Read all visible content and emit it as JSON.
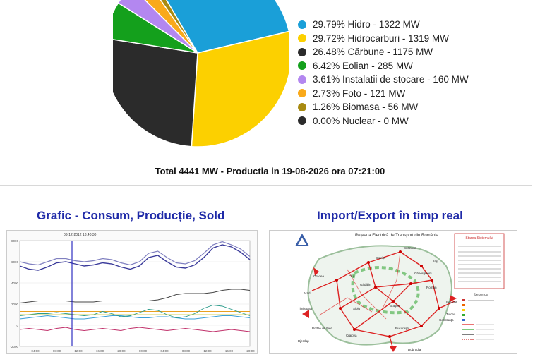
{
  "chart_data": {
    "type": "pie",
    "slices": [
      {
        "label": "29.79% Hidro - 1322 MW",
        "name": "Hidro",
        "percent": 29.79,
        "value": 1322,
        "color": "#1a9fd8"
      },
      {
        "label": "29.72% Hidrocarburi - 1319 MW",
        "name": "Hidrocarburi",
        "percent": 29.72,
        "value": 1319,
        "color": "#fcd000"
      },
      {
        "label": "26.48% Cărbune - 1175 MW",
        "name": "Cărbune",
        "percent": 26.48,
        "value": 1175,
        "color": "#2b2b2b"
      },
      {
        "label": "6.42% Eolian - 285 MW",
        "name": "Eolian",
        "percent": 6.42,
        "value": 285,
        "color": "#14a01c"
      },
      {
        "label": "3.61% Instalatii de stocare - 160 MW",
        "name": "Instalatii de stocare",
        "percent": 3.61,
        "value": 160,
        "color": "#b387f0"
      },
      {
        "label": "2.73% Foto - 121 MW",
        "name": "Foto",
        "percent": 2.73,
        "value": 121,
        "color": "#f9a91a"
      },
      {
        "label": "1.26% Biomasa - 56 MW",
        "name": "Biomasa",
        "percent": 1.26,
        "value": 56,
        "color": "#a88a10"
      },
      {
        "label": "0.00% Nuclear - 0 MW",
        "name": "Nuclear",
        "percent": 0.0,
        "value": 0,
        "color": "#2b2b2b"
      }
    ]
  },
  "total_text": "Total 4441 MW - Productia in 19-08-2026 ora 07:21:00",
  "sections": {
    "graph_title": "Grafic - Consum, Producție, Sold",
    "map_title": "Import/Export în timp real"
  },
  "graph_thumb": {
    "timestamp": "03-12-2012 18:40:30",
    "y_ticks": [
      "8000",
      "6000",
      "4000",
      "2000",
      "0",
      "-2000"
    ],
    "x_ticks": [
      "04:00",
      "08:00",
      "12:00",
      "16:00",
      "20:00",
      "00:00",
      "04:00",
      "08:00",
      "12:00",
      "16:00",
      "20:00"
    ],
    "consumption": [
      5.6,
      5.3,
      5.2,
      5.5,
      5.9,
      6.0,
      5.8,
      5.6,
      5.7,
      5.9,
      5.8,
      5.5,
      5.3,
      5.6,
      6.4,
      6.6,
      6.0,
      5.5,
      5.4,
      5.7,
      6.4,
      7.3,
      7.6,
      7.4,
      6.9,
      6.2
    ],
    "production": [
      6.0,
      5.8,
      5.7,
      6.0,
      6.3,
      6.3,
      6.1,
      6.0,
      6.1,
      6.3,
      6.2,
      5.9,
      5.7,
      6.0,
      6.8,
      7.0,
      6.4,
      5.9,
      5.8,
      6.1,
      6.8,
      7.6,
      7.9,
      7.6,
      7.2,
      6.5
    ],
    "coal": [
      2.1,
      2.2,
      2.3,
      2.3,
      2.3,
      2.3,
      2.2,
      2.2,
      2.2,
      2.3,
      2.3,
      2.3,
      2.3,
      2.3,
      2.3,
      2.4,
      2.6,
      2.9,
      3.0,
      3.0,
      3.0,
      3.1,
      3.3,
      3.4,
      3.4,
      3.3
    ],
    "hydro": [
      0.9,
      1.0,
      1.1,
      1.1,
      1.2,
      1.1,
      1.0,
      0.9,
      1.0,
      1.3,
      1.1,
      0.8,
      0.9,
      1.2,
      1.5,
      1.4,
      1.0,
      0.7,
      0.8,
      1.1,
      1.6,
      1.9,
      1.8,
      1.5,
      1.2,
      0.9
    ],
    "wind": [
      0.6,
      0.7,
      0.8,
      0.9,
      0.8,
      0.7,
      0.6,
      0.6,
      0.7,
      0.8,
      0.9,
      0.9,
      0.8,
      0.7,
      0.7,
      0.8,
      0.8,
      0.7,
      0.6,
      0.6,
      0.7,
      0.8,
      0.9,
      0.9,
      0.8,
      0.7
    ],
    "gas": [
      1.3,
      1.3,
      1.3,
      1.3,
      1.3,
      1.3,
      1.3,
      1.3,
      1.3,
      1.3,
      1.3,
      1.3,
      1.3,
      1.3,
      1.3,
      1.3,
      1.3,
      1.3,
      1.3,
      1.3,
      1.3,
      1.3,
      1.3,
      1.3,
      1.3,
      1.3
    ],
    "sold": [
      -0.4,
      -0.3,
      -0.4,
      -0.5,
      -0.3,
      -0.2,
      -0.4,
      -0.5,
      -0.4,
      -0.3,
      -0.4,
      -0.5,
      -0.3,
      -0.2,
      -0.3,
      -0.4,
      -0.5,
      -0.4,
      -0.3,
      -0.4,
      -0.5,
      -0.6,
      -0.5,
      -0.4,
      -0.5,
      -0.6
    ]
  },
  "map_thumb": {
    "title": "Reţeaua Electrică de Transport din România",
    "box_title": "Starea Sistemului",
    "cities": [
      "Suceava",
      "Iaşi",
      "Bistriţa",
      "Gheorghieni",
      "Oradea",
      "Roman",
      "Cluj",
      "Gădălin",
      "Arad",
      "Timişoara",
      "Sibiu",
      "Braşov",
      "Portile de Fier",
      "Craiova",
      "Bucureşti",
      "Constanţa",
      "Isaccea",
      "Tulcea",
      "Dobrudja",
      "Djerdap"
    ],
    "legend_title": "Legenda"
  }
}
